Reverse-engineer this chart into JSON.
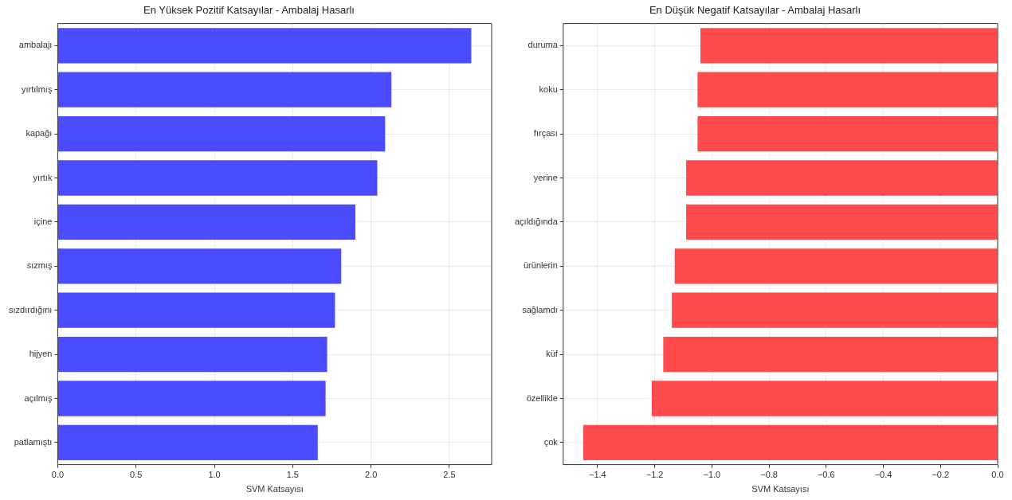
{
  "chart_data": [
    {
      "type": "bar",
      "orientation": "horizontal",
      "title": "En Yüksek Pozitif Katsayılar - Ambalaj Hasarlı",
      "xlabel": "SVM Katsayısı",
      "categories": [
        "ambalajı",
        "yırtılmış",
        "kapağı",
        "yırtık",
        "içine",
        "sızmış",
        "sızdırdığını",
        "hijyen",
        "açılmış",
        "patlamıştı"
      ],
      "values": [
        2.64,
        2.13,
        2.09,
        2.04,
        1.9,
        1.81,
        1.77,
        1.72,
        1.71,
        1.66
      ],
      "color": "#4b4bff",
      "xlim": [
        0,
        2.77
      ],
      "xticks": [
        {
          "value": 0,
          "label": "0.0"
        },
        {
          "value": 0.5,
          "label": "0.5"
        },
        {
          "value": 1,
          "label": "1.0"
        },
        {
          "value": 1.5,
          "label": "1.5"
        },
        {
          "value": 2,
          "label": "2.0"
        },
        {
          "value": 2.5,
          "label": "2.5"
        }
      ],
      "grid": true,
      "legend": false
    },
    {
      "type": "bar",
      "orientation": "horizontal",
      "title": "En Düşük Negatif Katsayılar - Ambalaj Hasarlı",
      "xlabel": "SVM Katsayısı",
      "categories": [
        "duruma",
        "koku",
        "fırçası",
        "yerine",
        "açıldığında",
        "ürünlerin",
        "sağlamdı",
        "küf",
        "özellikle",
        "çok"
      ],
      "values": [
        -1.04,
        -1.05,
        -1.05,
        -1.09,
        -1.09,
        -1.13,
        -1.14,
        -1.17,
        -1.21,
        -1.45
      ],
      "color": "#ff4b4b",
      "xlim": [
        -1.52,
        0
      ],
      "xticks": [
        {
          "value": -1.4,
          "label": "−1.4"
        },
        {
          "value": -1.2,
          "label": "−1.2"
        },
        {
          "value": -1,
          "label": "−1.0"
        },
        {
          "value": -0.8,
          "label": "−0.8"
        },
        {
          "value": -0.6,
          "label": "−0.6"
        },
        {
          "value": -0.4,
          "label": "−0.4"
        },
        {
          "value": -0.2,
          "label": "−0.2"
        },
        {
          "value": 0,
          "label": "0.0"
        }
      ],
      "grid": true,
      "legend": false
    }
  ]
}
